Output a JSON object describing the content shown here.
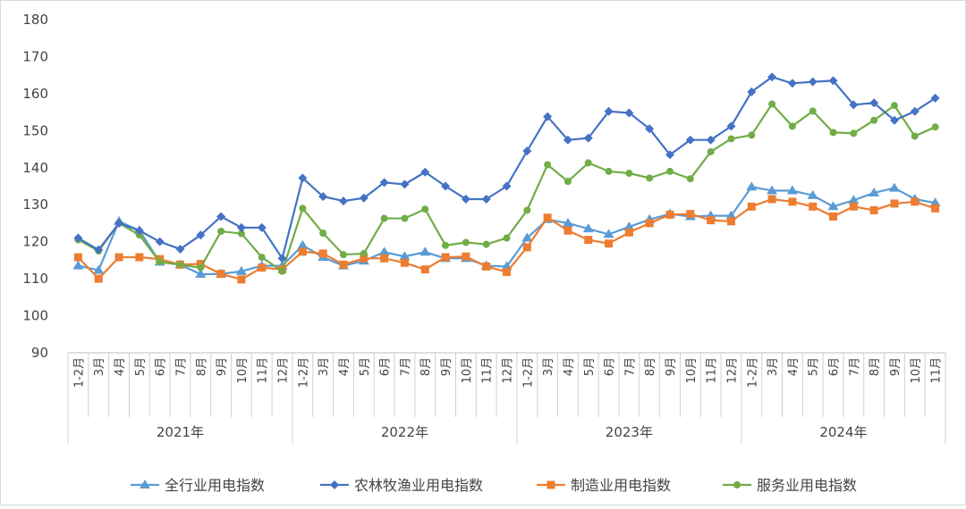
{
  "chart_data": {
    "type": "line",
    "title": "",
    "xlabel": "",
    "ylabel": "",
    "ylim": [
      90,
      180
    ],
    "yticks": [
      90,
      100,
      110,
      120,
      130,
      140,
      150,
      160,
      170,
      180
    ],
    "grid": false,
    "legend_position": "bottom",
    "years": [
      "2021年",
      "2022年",
      "2023年",
      "2024年"
    ],
    "year_month_counts": [
      11,
      11,
      11,
      10
    ],
    "categories": [
      "1-2月",
      "3月",
      "4月",
      "5月",
      "6月",
      "7月",
      "8月",
      "9月",
      "10月",
      "11月",
      "12月",
      "1-2月",
      "3月",
      "4月",
      "5月",
      "6月",
      "7月",
      "8月",
      "9月",
      "10月",
      "11月",
      "12月",
      "1-2月",
      "3月",
      "4月",
      "5月",
      "6月",
      "7月",
      "8月",
      "9月",
      "10月",
      "11月",
      "12月",
      "1-2月",
      "3月",
      "4月",
      "5月",
      "6月",
      "7月",
      "8月",
      "9月",
      "10月",
      "11月"
    ],
    "series": [
      {
        "name": "全行业用电指数",
        "color": "#5B9BD5",
        "marker": "triangle",
        "values": [
          113.5,
          112.3,
          125.5,
          123,
          114.5,
          113.8,
          111.2,
          111.3,
          112,
          113.5,
          113.5,
          119,
          115.8,
          113.5,
          114.8,
          117.2,
          116,
          117.2,
          115.5,
          115.5,
          113.5,
          113.3,
          121,
          126,
          125,
          123.5,
          122,
          124,
          126,
          127.5,
          126.8,
          127,
          127,
          134.8,
          133.8,
          133.8,
          132.5,
          129.5,
          131.2,
          133.2,
          134.5,
          131.5,
          130.5
        ]
      },
      {
        "name": "农林牧渔业用电指数",
        "color": "#4472C4",
        "marker": "diamond",
        "values": [
          121,
          117.8,
          125,
          123,
          120,
          118,
          121.8,
          126.8,
          123.8,
          123.8,
          115.5,
          137.2,
          132.2,
          131,
          131.8,
          136,
          135.5,
          138.8,
          135,
          131.5,
          131.5,
          135,
          144.5,
          153.8,
          147.5,
          148,
          155.2,
          154.8,
          150.5,
          143.5,
          147.5,
          147.5,
          151.2,
          160.5,
          164.5,
          162.8,
          163.2,
          163.5,
          157,
          157.5,
          152.8,
          155.2,
          158.8
        ]
      },
      {
        "name": "制造业用电指数",
        "color": "#ED7D31",
        "marker": "square",
        "values": [
          115.8,
          110,
          115.8,
          115.8,
          115.3,
          113.8,
          114,
          111.3,
          109.8,
          113,
          112.5,
          117.3,
          116.8,
          113.8,
          115.5,
          115.5,
          114.3,
          112.5,
          115.8,
          116,
          113.3,
          111.8,
          118.5,
          126.5,
          123,
          120.5,
          119.5,
          122.5,
          125,
          127.3,
          127.5,
          125.8,
          125.5,
          129.5,
          131.5,
          130.8,
          129.5,
          126.8,
          129.5,
          128.5,
          130.3,
          130.8,
          129
        ]
      },
      {
        "name": "服务业用电指数",
        "color": "#70AD47",
        "marker": "circle",
        "values": [
          120.5,
          117.5,
          125,
          121.8,
          114.5,
          113.8,
          113,
          122.8,
          122.2,
          115.8,
          112,
          129,
          122.3,
          116.5,
          116.8,
          126.3,
          126.3,
          128.8,
          119,
          119.8,
          119.3,
          121,
          128.5,
          140.8,
          136.3,
          141.3,
          139,
          138.5,
          137.2,
          139,
          137,
          144.3,
          147.8,
          148.8,
          157.2,
          151.2,
          155.3,
          149.5,
          149.3,
          152.8,
          156.8,
          148.5,
          151
        ]
      }
    ]
  }
}
